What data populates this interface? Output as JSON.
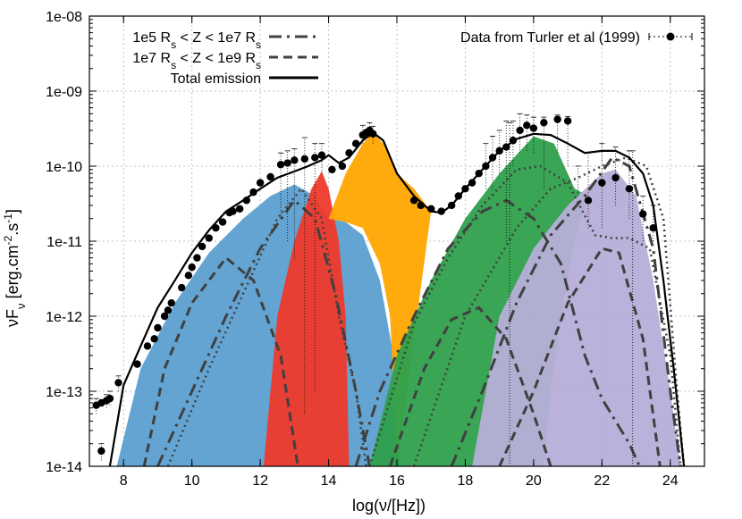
{
  "chart_data": {
    "type": "line",
    "xlabel": "log(ν/[Hz])",
    "ylabel": "νFν [erg.cm⁻².s⁻¹]",
    "xlim": [
      7,
      25
    ],
    "ylim": [
      1e-14,
      1e-08
    ],
    "yscale": "log",
    "grid": true,
    "legend_left_placement": "top-left",
    "legend_right_placement": "top-right",
    "xticks": [
      8,
      10,
      12,
      14,
      16,
      18,
      20,
      22,
      24
    ],
    "xtick_labels": [
      "8",
      "10",
      "12",
      "14",
      "16",
      "18",
      "20",
      "22",
      "24"
    ],
    "yticks": [
      1e-14,
      1e-13,
      1e-12,
      1e-11,
      1e-10,
      1e-09,
      1e-08
    ],
    "ytick_labels": [
      "1e-14",
      "1e-13",
      "1e-12",
      "1e-11",
      "1e-10",
      "1e-09",
      "1e-08"
    ],
    "legend": [
      {
        "label": "1e5 Rs < Z < 1e7 Rs",
        "label_parts": [
          "1e5 R",
          "s",
          " < Z < 1e7 R",
          "s"
        ],
        "style": "dash-dot",
        "color": "#404040"
      },
      {
        "label": "1e7 Rs < Z < 1e9 Rs",
        "label_parts": [
          "1e7 R",
          "s",
          " < Z < 1e9 R",
          "s"
        ],
        "style": "dashed",
        "color": "#404040"
      },
      {
        "label": "Total emission",
        "label_parts": [
          "Total emission"
        ],
        "style": "solid",
        "color": "#000000"
      },
      {
        "label": "Data from Turler et al (1999)",
        "label_parts": [
          "Data from Turler et al (1999)"
        ],
        "style": "dotted-points",
        "color": "#000000"
      }
    ],
    "colors": {
      "sync_blue": "#5b9fd1",
      "sync_red": "#ee3a2b",
      "sync_orange": "#ffa500",
      "ic_green": "#2ea04c",
      "ic_lavender": "#b6aed8",
      "curve_gray": "#404040",
      "total": "#000000"
    },
    "filled_components": [
      {
        "color": "sync_blue",
        "points": [
          [
            7.8,
            1e-14
          ],
          [
            8.5,
            2e-13
          ],
          [
            9.5,
            1.5e-12
          ],
          [
            10.5,
            7e-12
          ],
          [
            11.5,
            2e-11
          ],
          [
            12.3,
            4e-11
          ],
          [
            13.0,
            5.7e-11
          ],
          [
            13.6,
            4e-11
          ],
          [
            14.0,
            2e-11
          ],
          [
            14.5,
            1.8e-11
          ],
          [
            15.0,
            1.2e-11
          ],
          [
            15.5,
            3e-12
          ],
          [
            15.9,
            3e-13
          ],
          [
            16.1,
            1e-14
          ]
        ]
      },
      {
        "color": "sync_red",
        "points": [
          [
            12.1,
            1e-14
          ],
          [
            12.5,
            1e-12
          ],
          [
            13.0,
            1e-11
          ],
          [
            13.5,
            5e-11
          ],
          [
            13.8,
            8.5e-11
          ],
          [
            14.0,
            5e-11
          ],
          [
            14.3,
            1e-11
          ],
          [
            14.5,
            1e-12
          ],
          [
            14.6,
            1e-14
          ]
        ]
      },
      {
        "color": "sync_orange",
        "points": [
          [
            14.0,
            2e-11
          ],
          [
            14.5,
            8e-11
          ],
          [
            15.0,
            2e-10
          ],
          [
            15.3,
            2.8e-10
          ],
          [
            15.6,
            2e-10
          ],
          [
            16.0,
            8e-11
          ],
          [
            16.5,
            5e-11
          ],
          [
            17.0,
            2.5e-11
          ],
          [
            16.0,
            1e-14
          ],
          [
            15.8,
            1e-12
          ],
          [
            15.5,
            5e-12
          ],
          [
            15.0,
            1.5e-11
          ],
          [
            14.5,
            1.8e-11
          ]
        ]
      },
      {
        "color": "ic_green",
        "points": [
          [
            15.2,
            1e-14
          ],
          [
            16.0,
            3e-13
          ],
          [
            17.0,
            3e-12
          ],
          [
            18.0,
            2e-11
          ],
          [
            19.0,
            8e-11
          ],
          [
            20.0,
            2.5e-10
          ],
          [
            20.6,
            2e-10
          ],
          [
            21.2,
            5e-11
          ],
          [
            21.6,
            4e-11
          ],
          [
            21.2,
            1e-11
          ],
          [
            20.8,
            1e-12
          ],
          [
            20.5,
            1e-13
          ],
          [
            20.3,
            1e-14
          ]
        ]
      },
      {
        "color": "ic_lavender",
        "points": [
          [
            18.2,
            1e-14
          ],
          [
            19.0,
            1e-12
          ],
          [
            20.0,
            8e-12
          ],
          [
            21.0,
            3e-11
          ],
          [
            22.0,
            8e-11
          ],
          [
            22.4,
            9e-11
          ],
          [
            23.0,
            4e-11
          ],
          [
            23.5,
            3e-12
          ],
          [
            24.0,
            1e-13
          ],
          [
            24.3,
            1e-14
          ]
        ]
      }
    ],
    "curves": [
      {
        "style": "dash-dot",
        "points": [
          [
            9,
            1e-14
          ],
          [
            10,
            1e-13
          ],
          [
            11,
            1e-12
          ],
          [
            12,
            8e-12
          ],
          [
            13,
            3.5e-11
          ],
          [
            13.6,
            2e-11
          ],
          [
            14.2,
            2e-12
          ],
          [
            14.8,
            1e-13
          ],
          [
            15.2,
            1e-14
          ]
        ]
      },
      {
        "style": "dashed",
        "points": [
          [
            8.6,
            1e-14
          ],
          [
            9.2,
            2e-13
          ],
          [
            10,
            1.5e-12
          ],
          [
            11,
            6e-12
          ],
          [
            11.8,
            3e-12
          ],
          [
            12.6,
            3e-13
          ],
          [
            13.1,
            1e-14
          ]
        ]
      },
      {
        "style": "dotted",
        "points": [
          [
            9.3,
            1e-14
          ],
          [
            10.5,
            2e-13
          ],
          [
            11.5,
            2e-12
          ],
          [
            12.5,
            2e-11
          ],
          [
            13.2,
            5e-11
          ],
          [
            13.8,
            2e-11
          ],
          [
            14.3,
            1e-12
          ],
          [
            14.8,
            1e-13
          ],
          [
            15.1,
            1e-14
          ]
        ]
      },
      {
        "style": "dash-dot",
        "points": [
          [
            14.8,
            1e-14
          ],
          [
            15.5,
            1e-13
          ],
          [
            16.5,
            1e-12
          ],
          [
            17.5,
            8e-12
          ],
          [
            18.5,
            2.5e-11
          ],
          [
            19.2,
            3.5e-11
          ],
          [
            20.0,
            2e-11
          ],
          [
            20.8,
            5e-12
          ],
          [
            21.5,
            3e-13
          ],
          [
            22.0,
            8e-14
          ],
          [
            22.8,
            2e-14
          ],
          [
            23.1,
            1e-14
          ]
        ]
      },
      {
        "style": "dashed",
        "points": [
          [
            15.8,
            1e-14
          ],
          [
            16.8,
            2e-13
          ],
          [
            17.6,
            9e-13
          ],
          [
            18.4,
            1.3e-12
          ],
          [
            19.2,
            5e-13
          ],
          [
            20.0,
            5e-14
          ],
          [
            20.5,
            1e-14
          ]
        ]
      },
      {
        "style": "dotted",
        "points": [
          [
            15.2,
            1e-14
          ],
          [
            16.5,
            8e-13
          ],
          [
            17.5,
            6e-12
          ],
          [
            18.5,
            3e-11
          ],
          [
            19.5,
            9e-11
          ],
          [
            20.2,
            1e-10
          ],
          [
            21.0,
            6e-11
          ],
          [
            21.8,
            1.2e-11
          ],
          [
            22.3,
            1.1e-11
          ],
          [
            22.8,
            1.1e-11
          ],
          [
            23.4,
            8e-12
          ],
          [
            24.0,
            3e-13
          ],
          [
            24.3,
            1e-14
          ]
        ]
      },
      {
        "style": "dash-dot",
        "points": [
          [
            17.6,
            1e-14
          ],
          [
            18.5,
            1e-13
          ],
          [
            19.5,
            1.5e-12
          ],
          [
            20.5,
            1.2e-11
          ],
          [
            21.5,
            4e-11
          ],
          [
            22.3,
            1.3e-10
          ],
          [
            22.8,
            1e-10
          ],
          [
            23.5,
            8e-12
          ],
          [
            24.0,
            1e-13
          ],
          [
            24.3,
            1e-14
          ]
        ]
      },
      {
        "style": "dashed",
        "points": [
          [
            19.0,
            1e-14
          ],
          [
            20.0,
            1e-13
          ],
          [
            21.0,
            1.5e-12
          ],
          [
            22.0,
            8e-12
          ],
          [
            22.5,
            7e-12
          ],
          [
            23.2,
            5e-13
          ],
          [
            23.7,
            1e-14
          ]
        ]
      },
      {
        "style": "dotted",
        "points": [
          [
            16.5,
            1e-14
          ],
          [
            18.0,
            1e-12
          ],
          [
            19.5,
            1.5e-11
          ],
          [
            20.5,
            5e-11
          ],
          [
            21.3,
            7e-11
          ],
          [
            22.0,
            1e-10
          ],
          [
            22.7,
            1.3e-10
          ],
          [
            23.3,
            1e-10
          ],
          [
            23.8,
            2e-11
          ],
          [
            24.2,
            1e-13
          ],
          [
            24.4,
            1e-14
          ]
        ]
      }
    ],
    "total_emission": [
      [
        7.6,
        1e-14
      ],
      [
        8.0,
        1.2e-13
      ],
      [
        8.5,
        4e-13
      ],
      [
        9.0,
        1.3e-12
      ],
      [
        9.5,
        3e-12
      ],
      [
        10.0,
        7e-12
      ],
      [
        10.5,
        1.4e-11
      ],
      [
        11.0,
        2.5e-11
      ],
      [
        11.5,
        3.5e-11
      ],
      [
        12.0,
        5e-11
      ],
      [
        12.5,
        7e-11
      ],
      [
        13.0,
        8.5e-11
      ],
      [
        13.4,
        1e-10
      ],
      [
        13.8,
        1.2e-10
      ],
      [
        14.0,
        1.4e-10
      ],
      [
        14.3,
        1.1e-10
      ],
      [
        14.6,
        1.3e-10
      ],
      [
        15.0,
        2.2e-10
      ],
      [
        15.3,
        2.8e-10
      ],
      [
        15.6,
        2.2e-10
      ],
      [
        16.0,
        8e-11
      ],
      [
        16.5,
        4e-11
      ],
      [
        17.0,
        2.5e-11
      ],
      [
        17.3,
        2.4e-11
      ],
      [
        17.6,
        3e-11
      ],
      [
        18.0,
        5e-11
      ],
      [
        18.5,
        9e-11
      ],
      [
        19.0,
        1.6e-10
      ],
      [
        19.5,
        2.3e-10
      ],
      [
        20.0,
        2.7e-10
      ],
      [
        20.5,
        2.6e-10
      ],
      [
        21.0,
        2e-10
      ],
      [
        21.5,
        1.5e-10
      ],
      [
        22.0,
        1.6e-10
      ],
      [
        22.4,
        1.6e-10
      ],
      [
        22.8,
        1.3e-10
      ],
      [
        23.2,
        8e-11
      ],
      [
        23.5,
        3e-11
      ],
      [
        23.8,
        3e-12
      ],
      [
        24.1,
        2e-13
      ],
      [
        24.4,
        1e-14
      ]
    ],
    "data_points": [
      [
        7.2,
        6.5e-14
      ],
      [
        7.35,
        7e-14
      ],
      [
        7.5,
        7.5e-14
      ],
      [
        7.6,
        8e-14
      ],
      [
        7.85,
        1.3e-13
      ],
      [
        7.35,
        1.6e-14
      ],
      [
        8.4,
        2.3e-13
      ],
      [
        8.7,
        4e-13
      ],
      [
        8.9,
        5e-13
      ],
      [
        9.0,
        7e-13
      ],
      [
        9.2,
        1e-12
      ],
      [
        9.3,
        1.2e-12
      ],
      [
        9.4,
        1.5e-12
      ],
      [
        9.7,
        2.4e-12
      ],
      [
        9.9,
        3.5e-12
      ],
      [
        10.0,
        4.5e-12
      ],
      [
        10.15,
        6e-12
      ],
      [
        10.3,
        8.5e-12
      ],
      [
        10.5,
        1.1e-11
      ],
      [
        10.7,
        1.5e-11
      ],
      [
        10.9,
        1.8e-11
      ],
      [
        11.1,
        2.4e-11
      ],
      [
        11.2,
        2.5e-11
      ],
      [
        11.4,
        2.7e-11
      ],
      [
        11.6,
        3.5e-11
      ],
      [
        11.8,
        4.5e-11
      ],
      [
        12.0,
        6e-11
      ],
      [
        12.3,
        7.2e-11
      ],
      [
        12.6,
        1.05e-10
      ],
      [
        12.8,
        1.1e-10
      ],
      [
        13.0,
        1.2e-10
      ],
      [
        13.3,
        1.25e-10
      ],
      [
        13.6,
        1.3e-10
      ],
      [
        13.8,
        1.4e-10
      ],
      [
        14.1,
        9e-11
      ],
      [
        14.4,
        1e-10
      ],
      [
        14.6,
        1.5e-10
      ],
      [
        14.8,
        2e-10
      ],
      [
        15.0,
        2.6e-10
      ],
      [
        15.1,
        2.8e-10
      ],
      [
        15.2,
        3e-10
      ],
      [
        15.3,
        2.7e-10
      ],
      [
        16.5,
        3.5e-11
      ],
      [
        16.7,
        3e-11
      ],
      [
        17.0,
        2.7e-11
      ],
      [
        17.3,
        2.5e-11
      ],
      [
        17.6,
        3e-11
      ],
      [
        17.8,
        4e-11
      ],
      [
        18.0,
        5e-11
      ],
      [
        18.2,
        6e-11
      ],
      [
        18.4,
        8e-11
      ],
      [
        18.6,
        1e-10
      ],
      [
        18.8,
        1.3e-10
      ],
      [
        19.0,
        1.6e-10
      ],
      [
        19.2,
        1.8e-10
      ],
      [
        19.4,
        2.2e-10
      ],
      [
        19.6,
        3e-10
      ],
      [
        19.8,
        3.5e-10
      ],
      [
        20.0,
        3.2e-10
      ],
      [
        20.3,
        3.8e-10
      ],
      [
        20.7,
        4.2e-10
      ],
      [
        21.0,
        4e-10
      ],
      [
        21.6,
        3.5e-11
      ],
      [
        22.0,
        6e-11
      ],
      [
        22.4,
        7e-11
      ],
      [
        22.8,
        5e-11
      ],
      [
        23.2,
        2.3e-11
      ],
      [
        23.5,
        1.5e-11
      ]
    ],
    "error_segments": [
      [
        7.2,
        5e-14,
        8e-14
      ],
      [
        7.35,
        1.2e-14,
        2e-14
      ],
      [
        7.5,
        6e-14,
        9e-14
      ],
      [
        7.6,
        6.5e-14,
        1e-13
      ],
      [
        7.85,
        1e-13,
        1.6e-13
      ],
      [
        12.6,
        2e-11,
        1.5e-10
      ],
      [
        12.8,
        1e-11,
        1.6e-10
      ],
      [
        13.0,
        6e-12,
        1.7e-10
      ],
      [
        13.3,
        5e-14,
        2.4e-10
      ],
      [
        13.6,
        1e-13,
        2e-10
      ],
      [
        13.8,
        8e-11,
        2e-10
      ],
      [
        15.0,
        2e-10,
        3.5e-10
      ],
      [
        15.2,
        2.4e-10,
        3.8e-10
      ],
      [
        15.3,
        2e-10,
        3.4e-10
      ],
      [
        18.6,
        5e-11,
        2e-10
      ],
      [
        18.8,
        5e-11,
        2.5e-10
      ],
      [
        19.0,
        8e-11,
        3e-10
      ],
      [
        19.2,
        1e-11,
        4e-10
      ],
      [
        19.3,
        1e-14,
        3.8e-10
      ],
      [
        19.4,
        1e-10,
        4e-10
      ],
      [
        19.6,
        1.5e-10,
        5e-10
      ],
      [
        19.8,
        1.6e-10,
        4.8e-10
      ],
      [
        20.0,
        1.5e-10,
        4.5e-10
      ],
      [
        20.3,
        5e-11,
        4.5e-10
      ],
      [
        20.7,
        1.5e-10,
        4.8e-10
      ],
      [
        21.0,
        1e-10,
        4.6e-10
      ],
      [
        21.3,
        4e-11,
        1e-10
      ],
      [
        21.6,
        1.5e-11,
        1.5e-10
      ],
      [
        22.0,
        1.5e-11,
        2e-10
      ],
      [
        22.4,
        3e-11,
        1.8e-10
      ],
      [
        22.8,
        2e-11,
        1.6e-10
      ],
      [
        22.9,
        1e-14,
        1.6e-10
      ],
      [
        23.2,
        1e-11,
        4e-11
      ],
      [
        23.5,
        1e-11,
        3e-11
      ]
    ]
  }
}
